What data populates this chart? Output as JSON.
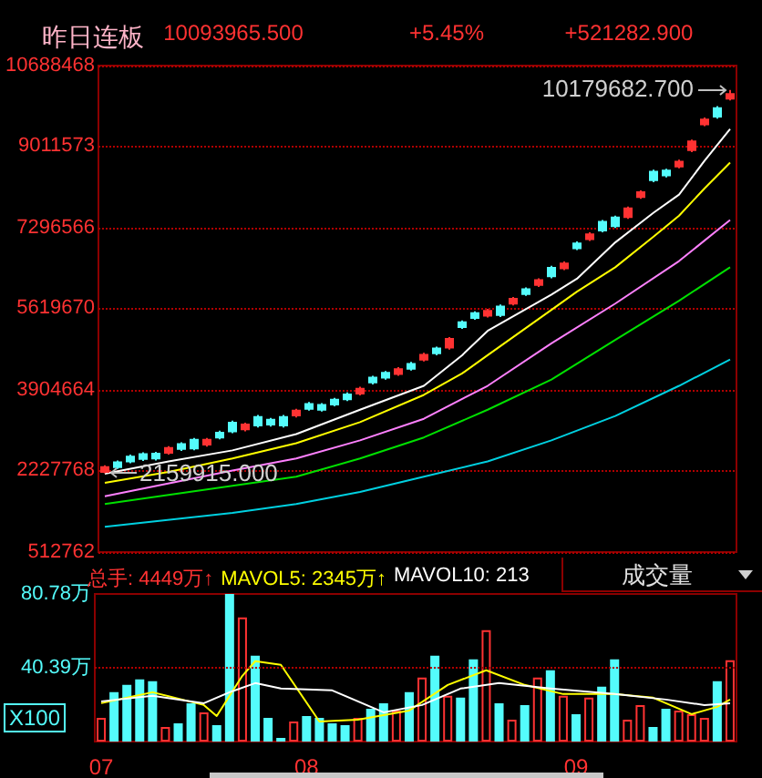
{
  "chart_data": [
    {
      "type": "candlestick",
      "title": "昨日连板",
      "annotations": [
        "10093965.500",
        "+5.45%",
        "+521282.900",
        "10179682.700",
        "2159915.000"
      ],
      "categories": [
        "07",
        null,
        null,
        null,
        null,
        null,
        null,
        null,
        null,
        null,
        null,
        null,
        null,
        null,
        null,
        null,
        "08",
        null,
        null,
        null,
        null,
        null,
        null,
        null,
        null,
        null,
        null,
        null,
        null,
        null,
        null,
        null,
        null,
        null,
        null,
        null,
        null,
        "09",
        null,
        null,
        null,
        null,
        null,
        null,
        null,
        null,
        null,
        null,
        null,
        null
      ],
      "series": [
        {
          "type": "candlestick",
          "ohlc": [
            [
              2190000,
              2330000,
              2159915,
              2290000
            ],
            [
              2390000,
              2430000,
              2250000,
              2290000
            ],
            [
              2510000,
              2550000,
              2370000,
              2410000
            ],
            [
              2560000,
              2600000,
              2420000,
              2460000
            ],
            [
              2570000,
              2610000,
              2430000,
              2470000
            ],
            [
              2590000,
              2730000,
              2550000,
              2690000
            ],
            [
              2770000,
              2810000,
              2630000,
              2670000
            ],
            [
              2860000,
              2900000,
              2640000,
              2680000
            ],
            [
              2760000,
              2900000,
              2720000,
              2860000
            ],
            [
              3010000,
              3050000,
              2870000,
              2910000
            ],
            [
              3220000,
              3260000,
              3000000,
              3040000
            ],
            [
              3080000,
              3220000,
              3040000,
              3180000
            ],
            [
              3340000,
              3380000,
              3120000,
              3160000
            ],
            [
              3280000,
              3320000,
              3140000,
              3180000
            ],
            [
              3340000,
              3380000,
              3120000,
              3160000
            ],
            [
              3370000,
              3510000,
              3330000,
              3470000
            ],
            [
              3610000,
              3650000,
              3470000,
              3510000
            ],
            [
              3590000,
              3630000,
              3450000,
              3490000
            ],
            [
              3700000,
              3740000,
              3560000,
              3600000
            ],
            [
              3810000,
              3850000,
              3670000,
              3710000
            ],
            [
              3830000,
              3970000,
              3790000,
              3930000
            ],
            [
              4160000,
              4200000,
              4020000,
              4060000
            ],
            [
              4260000,
              4300000,
              4120000,
              4160000
            ],
            [
              4240000,
              4380000,
              4200000,
              4340000
            ],
            [
              4450000,
              4490000,
              4310000,
              4350000
            ],
            [
              4540000,
              4680000,
              4500000,
              4640000
            ],
            [
              4770000,
              4810000,
              4630000,
              4670000
            ],
            [
              4790000,
              5010000,
              4750000,
              4970000
            ],
            [
              5320000,
              5360000,
              5180000,
              5220000
            ],
            [
              5510000,
              5550000,
              5370000,
              5410000
            ],
            [
              5460000,
              5600000,
              5420000,
              5560000
            ],
            [
              5650000,
              5690000,
              5430000,
              5470000
            ],
            [
              5710000,
              5850000,
              5670000,
              5810000
            ],
            [
              6010000,
              6050000,
              5870000,
              5910000
            ],
            [
              6100000,
              6240000,
              6060000,
              6200000
            ],
            [
              6460000,
              6500000,
              6240000,
              6280000
            ],
            [
              6450000,
              6590000,
              6410000,
              6550000
            ],
            [
              6970000,
              7010000,
              6830000,
              6870000
            ],
            [
              7060000,
              7200000,
              7020000,
              7160000
            ],
            [
              7420000,
              7460000,
              7200000,
              7240000
            ],
            [
              7510000,
              7550000,
              7290000,
              7330000
            ],
            [
              7520000,
              7740000,
              7480000,
              7700000
            ],
            [
              7940000,
              8080000,
              7900000,
              8040000
            ],
            [
              8470000,
              8510000,
              8250000,
              8290000
            ],
            [
              8490000,
              8530000,
              8350000,
              8390000
            ],
            [
              8580000,
              8720000,
              8540000,
              8680000
            ],
            [
              8920000,
              9140000,
              8880000,
              9100000
            ],
            [
              9460000,
              9600000,
              9420000,
              9560000
            ],
            [
              9800000,
              9840000,
              9580000,
              9620000
            ],
            [
              10000000,
              10179682.7,
              9960000,
              10093965.5
            ]
          ],
          "colors": [
            "#ff3232",
            "#54fcfc",
            "#54fcfc",
            "#54fcfc",
            "#54fcfc",
            "#ff3232",
            "#54fcfc",
            "#54fcfc",
            "#ff3232",
            "#54fcfc",
            "#54fcfc",
            "#ff3232",
            "#54fcfc",
            "#54fcfc",
            "#54fcfc",
            "#ff3232",
            "#54fcfc",
            "#54fcfc",
            "#54fcfc",
            "#54fcfc",
            "#ff3232",
            "#54fcfc",
            "#54fcfc",
            "#ff3232",
            "#54fcfc",
            "#ff3232",
            "#54fcfc",
            "#ff3232",
            "#54fcfc",
            "#54fcfc",
            "#ff3232",
            "#54fcfc",
            "#ff3232",
            "#54fcfc",
            "#ff3232",
            "#54fcfc",
            "#ff3232",
            "#54fcfc",
            "#ff3232",
            "#54fcfc",
            "#54fcfc",
            "#ff3232",
            "#ff3232",
            "#54fcfc",
            "#54fcfc",
            "#ff3232",
            "#ff3232",
            "#ff3232",
            "#54fcfc",
            "#ff3232"
          ]
        },
        {
          "type": "line",
          "color": "#ffffff",
          "values": [
            2150000,
            null,
            null,
            null,
            null,
            2410000,
            null,
            null,
            null,
            null,
            2640000,
            null,
            null,
            null,
            null,
            2980000,
            null,
            null,
            null,
            null,
            3490000,
            null,
            null,
            null,
            null,
            3990000,
            null,
            null,
            4630000,
            null,
            5140000,
            null,
            null,
            null,
            null,
            5900000,
            null,
            6230000,
            null,
            null,
            6990000,
            null,
            null,
            7610000,
            null,
            7990000,
            null,
            8700000,
            null,
            9360000
          ]
        },
        {
          "type": "line",
          "color": "#ffff00",
          "values": [
            1960000,
            null,
            null,
            null,
            null,
            2190000,
            null,
            null,
            null,
            null,
            2470000,
            null,
            null,
            null,
            null,
            2790000,
            null,
            null,
            null,
            null,
            3230000,
            null,
            null,
            null,
            null,
            3800000,
            null,
            null,
            4250000,
            null,
            4630000,
            null,
            null,
            null,
            null,
            5580000,
            null,
            5960000,
            null,
            null,
            6470000,
            null,
            null,
            7110000,
            null,
            7550000,
            null,
            8120000,
            null,
            8660000
          ]
        },
        {
          "type": "line",
          "color": "#ff80ff",
          "values": [
            1680000,
            null,
            null,
            null,
            null,
            null,
            null,
            null,
            null,
            null,
            2220000,
            null,
            null,
            null,
            null,
            2470000,
            null,
            null,
            null,
            null,
            2850000,
            null,
            null,
            null,
            null,
            3300000,
            null,
            null,
            null,
            null,
            3990000,
            null,
            null,
            null,
            null,
            4880000,
            null,
            null,
            null,
            null,
            5710000,
            null,
            null,
            null,
            null,
            6600000,
            null,
            null,
            null,
            7460000
          ]
        },
        {
          "type": "line",
          "color": "#00e000",
          "values": [
            1520000,
            null,
            null,
            null,
            null,
            null,
            null,
            null,
            null,
            null,
            1900000,
            null,
            null,
            null,
            null,
            2090000,
            null,
            null,
            null,
            null,
            2470000,
            null,
            null,
            null,
            null,
            2910000,
            null,
            null,
            null,
            null,
            3490000,
            null,
            null,
            null,
            null,
            4120000,
            null,
            null,
            null,
            null,
            4950000,
            null,
            null,
            null,
            null,
            5770000,
            null,
            null,
            null,
            6470000
          ]
        },
        {
          "type": "line",
          "color": "#00d0e0",
          "values": [
            1040000,
            null,
            null,
            null,
            null,
            null,
            null,
            null,
            null,
            null,
            1330000,
            null,
            null,
            null,
            null,
            1520000,
            null,
            null,
            null,
            null,
            1770000,
            null,
            null,
            null,
            null,
            2090000,
            null,
            null,
            null,
            null,
            2410000,
            null,
            null,
            null,
            null,
            2850000,
            null,
            null,
            null,
            null,
            3360000,
            null,
            null,
            null,
            null,
            3990000,
            null,
            null,
            null,
            4540000
          ]
        }
      ],
      "ylim": [
        512762,
        10688468
      ],
      "yticks": [
        512762,
        2227768,
        3904664,
        5619670,
        7296566,
        9011573,
        10688468
      ],
      "grid": "y",
      "tick_labels": "y",
      "marker": "none"
    },
    {
      "type": "bar",
      "annotations": [
        "总手: 4449万↑",
        "MAVOL5: 2345万↑",
        "MAVOL10: 213",
        "成交量",
        "X100"
      ],
      "categories": [
        "07",
        null,
        null,
        null,
        null,
        null,
        null,
        null,
        null,
        null,
        null,
        null,
        null,
        null,
        null,
        null,
        "08",
        null,
        null,
        null,
        null,
        null,
        null,
        null,
        null,
        null,
        null,
        null,
        null,
        null,
        null,
        null,
        null,
        null,
        null,
        null,
        null,
        "09",
        null,
        null,
        null,
        null,
        null,
        null,
        null,
        null,
        null,
        null,
        null,
        null
      ],
      "series": [
        {
          "type": "bar",
          "values": [
            13,
            27,
            31,
            34,
            33,
            8,
            10,
            21,
            16,
            9,
            80.78,
            68,
            47,
            13,
            2,
            11,
            14,
            13,
            10,
            9,
            13,
            18,
            21,
            17,
            27,
            35,
            47,
            25,
            24,
            45,
            61,
            21,
            12,
            20,
            35,
            39,
            25,
            15,
            24,
            30,
            45,
            12,
            20,
            8,
            18,
            17,
            15,
            13,
            33,
            44.49
          ],
          "colors": [
            "#ff3232",
            "#54fcfc",
            "#54fcfc",
            "#54fcfc",
            "#54fcfc",
            "#ff3232",
            "#54fcfc",
            "#54fcfc",
            "#ff3232",
            "#54fcfc",
            "#54fcfc",
            "#ff3232",
            "#54fcfc",
            "#54fcfc",
            "#54fcfc",
            "#ff3232",
            "#54fcfc",
            "#54fcfc",
            "#54fcfc",
            "#54fcfc",
            "#ff3232",
            "#54fcfc",
            "#54fcfc",
            "#ff3232",
            "#54fcfc",
            "#ff3232",
            "#54fcfc",
            "#ff3232",
            "#54fcfc",
            "#54fcfc",
            "#ff3232",
            "#54fcfc",
            "#ff3232",
            "#54fcfc",
            "#ff3232",
            "#54fcfc",
            "#ff3232",
            "#54fcfc",
            "#ff3232",
            "#54fcfc",
            "#54fcfc",
            "#ff3232",
            "#ff3232",
            "#54fcfc",
            "#54fcfc",
            "#ff3232",
            "#ff3232",
            "#ff3232",
            "#54fcfc",
            "#ff3232"
          ]
        },
        {
          "type": "line",
          "color": "#ffff00",
          "values": [
            21,
            null,
            null,
            null,
            27,
            null,
            null,
            null,
            20,
            14,
            null,
            36,
            44,
            null,
            42,
            null,
            null,
            11,
            null,
            null,
            12,
            null,
            null,
            null,
            17,
            null,
            null,
            31,
            null,
            null,
            39,
            null,
            null,
            31,
            null,
            null,
            26,
            null,
            null,
            null,
            26,
            null,
            null,
            24,
            null,
            null,
            15,
            null,
            19,
            23
          ]
        },
        {
          "type": "line",
          "color": "#ffffff",
          "values": [
            22,
            null,
            null,
            null,
            25,
            null,
            null,
            null,
            21,
            null,
            27,
            null,
            32,
            null,
            29,
            null,
            null,
            null,
            28,
            null,
            null,
            null,
            16,
            null,
            null,
            20,
            null,
            null,
            29,
            null,
            null,
            32,
            null,
            null,
            null,
            29,
            null,
            null,
            null,
            null,
            26,
            null,
            null,
            null,
            23,
            null,
            null,
            20,
            null,
            21
          ]
        }
      ],
      "ylim": [
        0,
        80.78
      ],
      "yticks": [
        {
          "value": 40.39,
          "label": "40.39万"
        },
        {
          "value": 80.78,
          "label": "80.78万"
        }
      ],
      "grid": false,
      "marker": "none",
      "ref_lines": [
        {
          "axis": "y",
          "value": 40.39,
          "color": "#b00000",
          "line_style": "dotted"
        }
      ]
    }
  ]
}
